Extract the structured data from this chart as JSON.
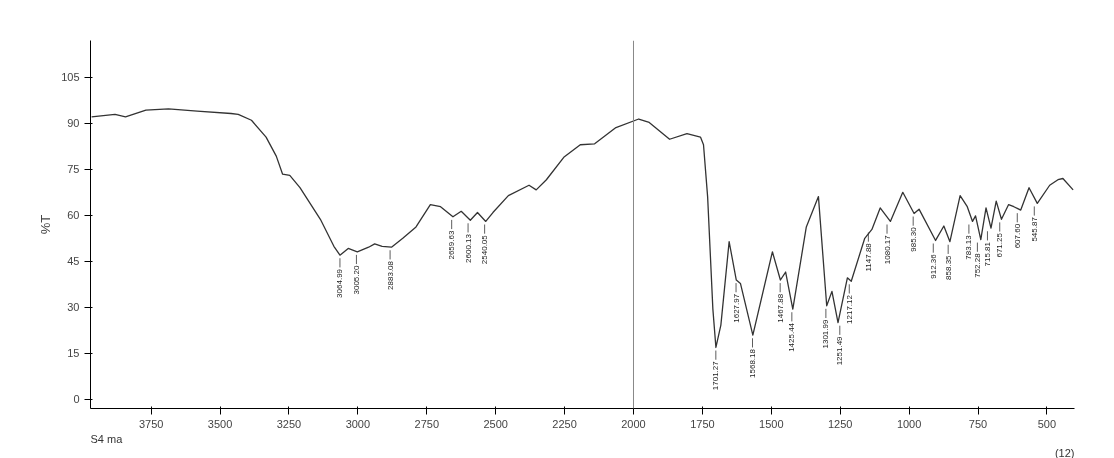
{
  "chart_data": {
    "type": "line",
    "ylabel": "%T",
    "x": [
      3966,
      3881,
      3843,
      3769,
      3687,
      3583,
      3460,
      3434,
      3386,
      3333,
      3296,
      3273,
      3247,
      3210,
      3136,
      3087,
      3065,
      3035,
      3002,
      2961,
      2939,
      2912,
      2878,
      2837,
      2789,
      2737,
      2700,
      2655,
      2625,
      2592,
      2566,
      2536,
      2510,
      2454,
      2379,
      2353,
      2316,
      2253,
      2193,
      2141,
      2066,
      1981,
      1943,
      1869,
      1806,
      1757,
      1746,
      1731,
      1712,
      1701,
      1683,
      1653,
      1627,
      1612,
      1567,
      1496,
      1467,
      1448,
      1422,
      1373,
      1329,
      1299,
      1280,
      1258,
      1224,
      1210,
      1161,
      1135,
      1105,
      1068,
      1023,
      982,
      964,
      904,
      874,
      852,
      815,
      789,
      770,
      759,
      740,
      721,
      703,
      684,
      665,
      639,
      620,
      595,
      565,
      535,
      490,
      460,
      442,
      405
    ],
    "series": [
      {
        "color": "#333333",
        "values": [
          92.1,
          92.9,
          92.1,
          94.3,
          94.7,
          94,
          93.2,
          92.9,
          91,
          85.5,
          79.3,
          73.4,
          73,
          69,
          58.7,
          49.9,
          47,
          49.2,
          48.1,
          49.6,
          50.7,
          49.9,
          49.6,
          52.5,
          56.2,
          63.5,
          62.8,
          59.5,
          61.3,
          58.4,
          60.9,
          58,
          60.9,
          66.4,
          69.8,
          68.3,
          71.6,
          78.9,
          83,
          83.3,
          88.5,
          91.4,
          90.3,
          84.8,
          86.6,
          85.5,
          83,
          66,
          29.4,
          16.9,
          24.2,
          51.4,
          38.9,
          37.8,
          20.9,
          48.1,
          38.9,
          41.5,
          29.4,
          56.2,
          66.1,
          30.5,
          35.2,
          25,
          39.6,
          38.5,
          52.5,
          55.4,
          62.4,
          58,
          67.5,
          60.6,
          62,
          51.8,
          56.5,
          51.4,
          66.4,
          62.8,
          58,
          59.8,
          52.1,
          62.4,
          55.8,
          64.6,
          58.7,
          63.5,
          62.8,
          61.7,
          69,
          63.9,
          69.8,
          71.6,
          72,
          68.3
        ]
      }
    ],
    "xlim": [
      3970,
      400
    ],
    "ylim": [
      -3,
      117
    ],
    "xticks": [
      3750,
      3500,
      3250,
      3000,
      2750,
      2500,
      2250,
      2000,
      1750,
      1500,
      1250,
      1000,
      750,
      500
    ],
    "yticks": [
      0,
      15,
      30,
      45,
      60,
      75,
      90,
      105
    ],
    "grid": false,
    "marker": "none",
    "line_style": "solid",
    "ref_lines": [
      {
        "axis": "x",
        "value": 2000,
        "color": "#888888"
      }
    ],
    "annotations": [
      {
        "text": "3064.99",
        "x": 3064.99,
        "y": 47
      },
      {
        "text": "3005.20",
        "x": 3005.2,
        "y": 48.1
      },
      {
        "text": "2883.08",
        "x": 2883.08,
        "y": 49.6
      },
      {
        "text": "2659.63",
        "x": 2659.63,
        "y": 59.5
      },
      {
        "text": "2600.13",
        "x": 2600.13,
        "y": 58.4
      },
      {
        "text": "2540.05",
        "x": 2540.05,
        "y": 58
      },
      {
        "text": "1701.27",
        "x": 1701.27,
        "y": 16.9
      },
      {
        "text": "1627.97",
        "x": 1627.97,
        "y": 38.9
      },
      {
        "text": "1568.18",
        "x": 1568.18,
        "y": 20.9
      },
      {
        "text": "1467.88",
        "x": 1467.88,
        "y": 38.9
      },
      {
        "text": "1425.44",
        "x": 1425.44,
        "y": 29.4
      },
      {
        "text": "1301.99",
        "x": 1301.99,
        "y": 30.5
      },
      {
        "text": "1251.49",
        "x": 1251.49,
        "y": 25
      },
      {
        "text": "1217.12",
        "x": 1217.12,
        "y": 38.5
      },
      {
        "text": "1147.88",
        "x": 1147.88,
        "y": 55.4
      },
      {
        "text": "1080.17",
        "x": 1080.17,
        "y": 58
      },
      {
        "text": "985.30",
        "x": 985.3,
        "y": 60.6
      },
      {
        "text": "912.36",
        "x": 912.36,
        "y": 51.8
      },
      {
        "text": "858.35",
        "x": 858.35,
        "y": 51.4
      },
      {
        "text": "783.13",
        "x": 783.13,
        "y": 58
      },
      {
        "text": "752.28",
        "x": 752.28,
        "y": 52.1
      },
      {
        "text": "715.81",
        "x": 715.81,
        "y": 55.8
      },
      {
        "text": "671.25",
        "x": 671.25,
        "y": 58.7
      },
      {
        "text": "607.60",
        "x": 607.6,
        "y": 61.7
      },
      {
        "text": "545.87",
        "x": 545.87,
        "y": 63.9
      },
      "S4 ma",
      "(12)"
    ]
  }
}
